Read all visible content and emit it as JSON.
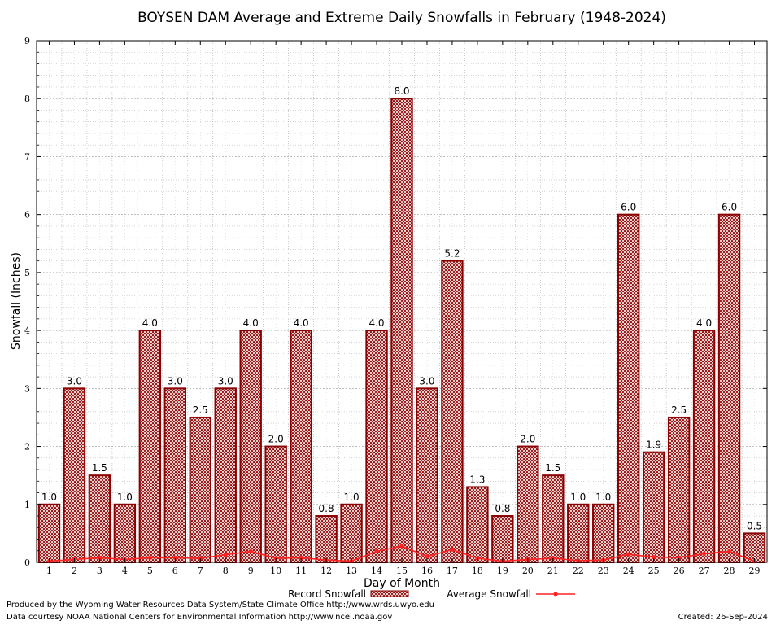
{
  "chart_data": {
    "type": "bar",
    "title": "BOYSEN DAM Average and Extreme Daily Snowfalls in February (1948-2024)",
    "xlabel": "Day of Month",
    "ylabel": "Snowfall (Inches)",
    "ylim": [
      0,
      9
    ],
    "yticks": [
      0,
      1,
      2,
      3,
      4,
      5,
      6,
      7,
      8,
      9
    ],
    "grid": true,
    "legend_position": "bottom",
    "categories": [
      "1",
      "2",
      "3",
      "4",
      "5",
      "6",
      "7",
      "8",
      "9",
      "10",
      "11",
      "12",
      "13",
      "14",
      "15",
      "16",
      "17",
      "18",
      "19",
      "20",
      "21",
      "22",
      "23",
      "24",
      "25",
      "26",
      "27",
      "28",
      "29"
    ],
    "series": [
      {
        "name": "Record Snowfall",
        "kind": "bar",
        "color": "#8b0000",
        "values": [
          1.0,
          3.0,
          1.5,
          1.0,
          4.0,
          3.0,
          2.5,
          3.0,
          4.0,
          2.0,
          4.0,
          0.8,
          1.0,
          4.0,
          8.0,
          3.0,
          5.2,
          1.3,
          0.8,
          2.0,
          1.5,
          1.0,
          1.0,
          6.0,
          1.9,
          2.5,
          4.0,
          6.0,
          0.5
        ],
        "labels": [
          "1.0",
          "3.0",
          "1.5",
          "1.0",
          "4.0",
          "3.0",
          "2.5",
          "3.0",
          "4.0",
          "2.0",
          "4.0",
          "0.8",
          "1.0",
          "4.0",
          "8.0",
          "3.0",
          "5.2",
          "1.3",
          "0.8",
          "2.0",
          "1.5",
          "1.0",
          "1.0",
          "6.0",
          "1.9",
          "2.5",
          "4.0",
          "6.0",
          "0.5"
        ]
      },
      {
        "name": "Average Snowfall",
        "kind": "line",
        "color": "#ff2020",
        "values": [
          0.02,
          0.05,
          0.08,
          0.05,
          0.08,
          0.08,
          0.07,
          0.13,
          0.19,
          0.07,
          0.08,
          0.04,
          0.02,
          0.19,
          0.28,
          0.1,
          0.22,
          0.07,
          0.02,
          0.05,
          0.07,
          0.03,
          0.04,
          0.14,
          0.09,
          0.08,
          0.15,
          0.19,
          0.02
        ]
      }
    ]
  },
  "footer": {
    "produced_by": "Produced by the Wyoming Water Resources Data System/State Climate Office http://www.wrds.uwyo.edu",
    "data_courtesy": "Data courtesy NOAA National Centers for Environmental Information http://www.ncei.noaa.gov",
    "created": "Created:  26-Sep-2024"
  }
}
